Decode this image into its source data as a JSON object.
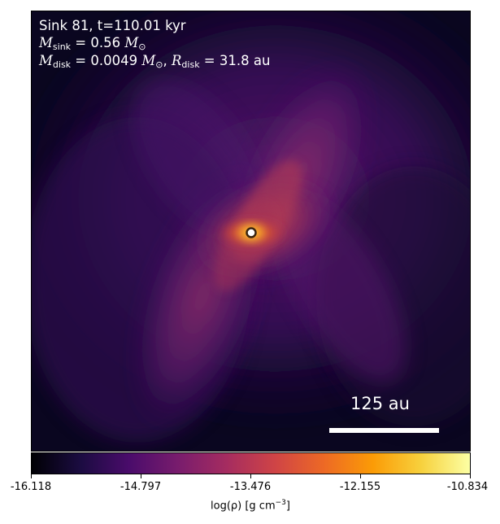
{
  "panel": {
    "line1": "Sink 81, t=110.01 kyr",
    "sink_mass": {
      "symbol": "M",
      "subscript": "sink",
      "value": "0.56",
      "unit": "M",
      "unit_subscript": "⊙"
    },
    "disk": {
      "mass_symbol": "M",
      "mass_subscript": "disk",
      "mass_value": "0.0049",
      "mass_unit": "M",
      "mass_unit_subscript": "⊙",
      "radius_symbol": "R",
      "radius_subscript": "disk",
      "radius_value": "31.8",
      "radius_unit": "au"
    },
    "scale_bar_label": "125 au"
  },
  "colorbar": {
    "colormap": "inferno",
    "ticks": [
      "-16.118",
      "-14.797",
      "-13.476",
      "-12.155",
      "-10.834"
    ],
    "label_prefix": "log(ρ) [g cm",
    "label_exponent": "−3",
    "label_suffix": "]"
  },
  "colors": {
    "background": "#08051b",
    "sink_marker_fill": "#ffffff",
    "sink_marker_edge": "#3a2410",
    "text": "#ffffff"
  }
}
